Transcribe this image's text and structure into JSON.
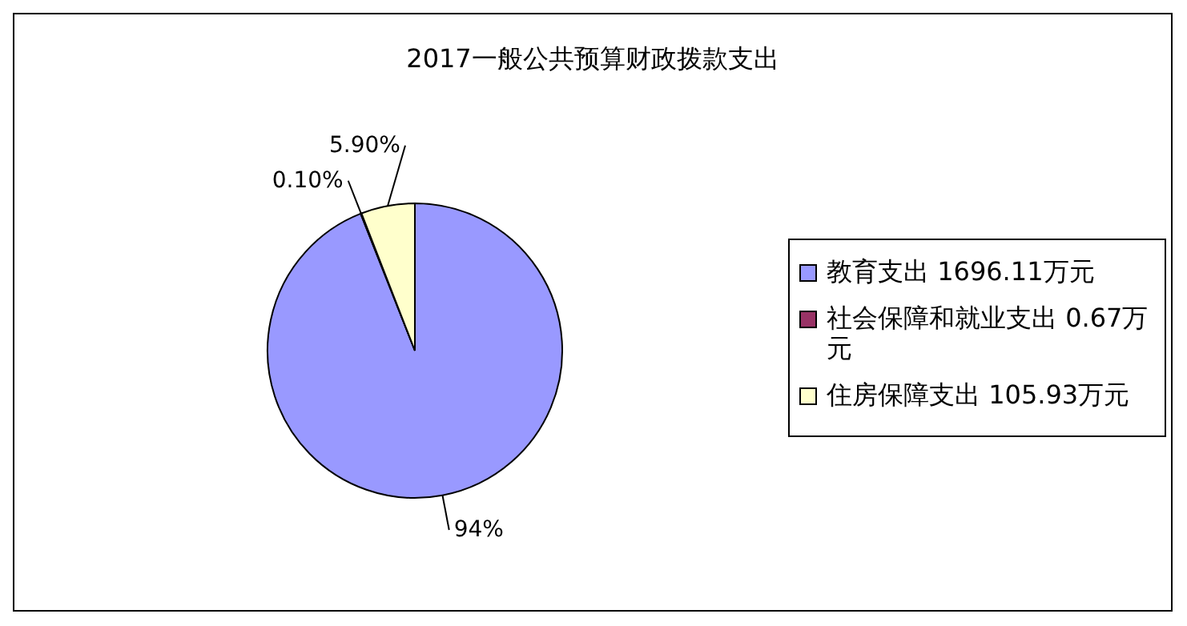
{
  "chart_data": {
    "type": "pie",
    "title": "2017一般公共预算财政拨款支出",
    "categories": [
      "教育支出 1696.11万元",
      "社会保障和就业支出 0.67万元",
      "住房保障支出 105.93万元"
    ],
    "values": [
      94,
      0.1,
      5.9
    ],
    "value_labels": [
      "94%",
      "0.10%",
      "5.90%"
    ],
    "colors": [
      "#9999ff",
      "#993366",
      "#ffffcc"
    ],
    "legend": "right"
  }
}
